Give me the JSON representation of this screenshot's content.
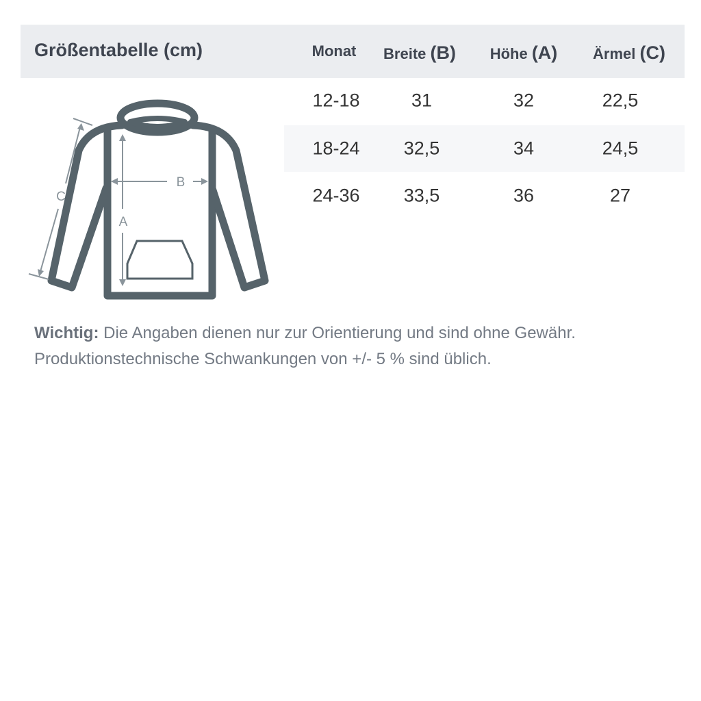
{
  "title": "Größentabelle (cm)",
  "columns": [
    {
      "label": "Monat",
      "letter": ""
    },
    {
      "label": "Breite ",
      "letter": "(B)"
    },
    {
      "label": "Höhe ",
      "letter": "(A)"
    },
    {
      "label": "Ärmel ",
      "letter": "(C)"
    }
  ],
  "rows": [
    [
      "12-18",
      "31",
      "32",
      "22,5"
    ],
    [
      "18-24",
      "32,5",
      "34",
      "24,5"
    ],
    [
      "24-36",
      "33,5",
      "36",
      "27"
    ]
  ],
  "diagram": {
    "label_a": "A",
    "label_b": "B",
    "label_c": "C"
  },
  "note": {
    "bold": "Wichtig:",
    "line1": " Die Angaben dienen nur zur Orientierung und sind ohne Gewähr.",
    "line2": "Produktionstechnische Schwankungen von +/- 5 % sind üblich."
  },
  "colors": {
    "header_bg": "#ebedf0",
    "outline": "#56636a",
    "measure": "#8a949b"
  }
}
